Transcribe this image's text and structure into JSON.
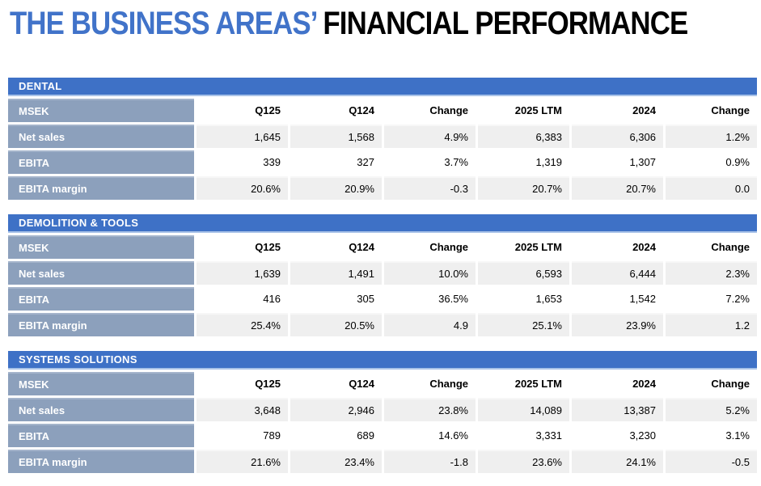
{
  "title": {
    "highlight": "THE BUSINESS AREAS’",
    "rest": "FINANCIAL PERFORMANCE"
  },
  "colors": {
    "title_accent": "#4173C9",
    "section_band": "#3E71C6",
    "row_label_background": "#8CA0BC",
    "stripe_row_background": "#EFEFEF",
    "text": "#000000",
    "band_text": "#FFFFFF"
  },
  "chart_data": [
    {
      "type": "table",
      "title": "DENTAL",
      "columns": [
        "MSEK",
        "Q125",
        "Q124",
        "Change",
        "2025 LTM",
        "2024",
        "Change"
      ],
      "rows": [
        {
          "label": "Net sales",
          "values": [
            "1,645",
            "1,568",
            "4.9%",
            "6,383",
            "6,306",
            "1.2%"
          ]
        },
        {
          "label": "EBITA",
          "values": [
            "339",
            "327",
            "3.7%",
            "1,319",
            "1,307",
            "0.9%"
          ]
        },
        {
          "label": "EBITA margin",
          "values": [
            "20.6%",
            "20.9%",
            "-0.3",
            "20.7%",
            "20.7%",
            "0.0"
          ]
        }
      ]
    },
    {
      "type": "table",
      "title": "DEMOLITION & TOOLS",
      "columns": [
        "MSEK",
        "Q125",
        "Q124",
        "Change",
        "2025 LTM",
        "2024",
        "Change"
      ],
      "rows": [
        {
          "label": "Net sales",
          "values": [
            "1,639",
            "1,491",
            "10.0%",
            "6,593",
            "6,444",
            "2.3%"
          ]
        },
        {
          "label": "EBITA",
          "values": [
            "416",
            "305",
            "36.5%",
            "1,653",
            "1,542",
            "7.2%"
          ]
        },
        {
          "label": "EBITA margin",
          "values": [
            "25.4%",
            "20.5%",
            "4.9",
            "25.1%",
            "23.9%",
            "1.2"
          ]
        }
      ]
    },
    {
      "type": "table",
      "title": "SYSTEMS SOLUTIONS",
      "columns": [
        "MSEK",
        "Q125",
        "Q124",
        "Change",
        "2025 LTM",
        "2024",
        "Change"
      ],
      "rows": [
        {
          "label": "Net sales",
          "values": [
            "3,648",
            "2,946",
            "23.8%",
            "14,089",
            "13,387",
            "5.2%"
          ]
        },
        {
          "label": "EBITA",
          "values": [
            "789",
            "689",
            "14.6%",
            "3,331",
            "3,230",
            "3.1%"
          ]
        },
        {
          "label": "EBITA margin",
          "values": [
            "21.6%",
            "23.4%",
            "-1.8",
            "23.6%",
            "24.1%",
            "-0.5"
          ]
        }
      ]
    }
  ]
}
